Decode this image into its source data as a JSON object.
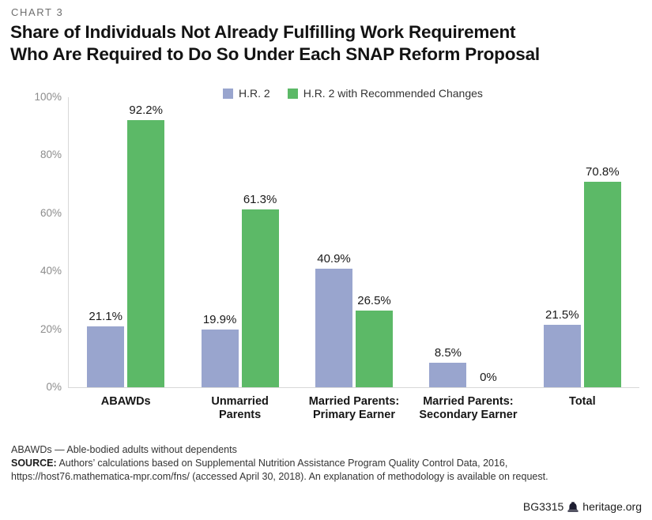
{
  "header": {
    "kicker": "CHART 3",
    "title_line1": "Share of Individuals Not Already Fulfilling Work Requirement",
    "title_line2": "Who Are Required to Do So Under Each SNAP Reform Proposal"
  },
  "chart_data": {
    "type": "bar",
    "categories": [
      [
        "ABAWDs"
      ],
      [
        "Unmarried",
        "Parents"
      ],
      [
        "Married Parents:",
        "Primary Earner"
      ],
      [
        "Married Parents:",
        "Secondary Earner"
      ],
      [
        "Total"
      ]
    ],
    "series": [
      {
        "name": "H.R. 2",
        "color": "#99A5CE",
        "values": [
          21.1,
          19.9,
          40.9,
          8.5,
          21.5
        ],
        "labels": [
          "21.1%",
          "19.9%",
          "40.9%",
          "8.5%",
          "21.5%"
        ]
      },
      {
        "name": "H.R. 2 with Recommended Changes",
        "color": "#5CB967",
        "values": [
          92.2,
          61.3,
          26.5,
          0,
          70.8
        ],
        "labels": [
          "92.2%",
          "61.3%",
          "26.5%",
          "0%",
          "70.8%"
        ]
      }
    ],
    "y_ticks": [
      "100%",
      "80%",
      "60%",
      "40%",
      "20%",
      "0%"
    ],
    "ylim": [
      0,
      100
    ],
    "grid": false,
    "legend_position": "top-center"
  },
  "footer": {
    "note": "ABAWDs — Able-bodied adults without dependents",
    "source_label": "SOURCE:",
    "source_line1": "Authors’ calculations based on Supplemental Nutrition Assistance Program Quality Control Data, 2016,",
    "source_line2": "https://host76.mathematica-mpr.com/fns/ (accessed April 30, 2018). An explanation of methodology is available on request.",
    "report_id": "BG3315",
    "site": "heritage.org"
  }
}
